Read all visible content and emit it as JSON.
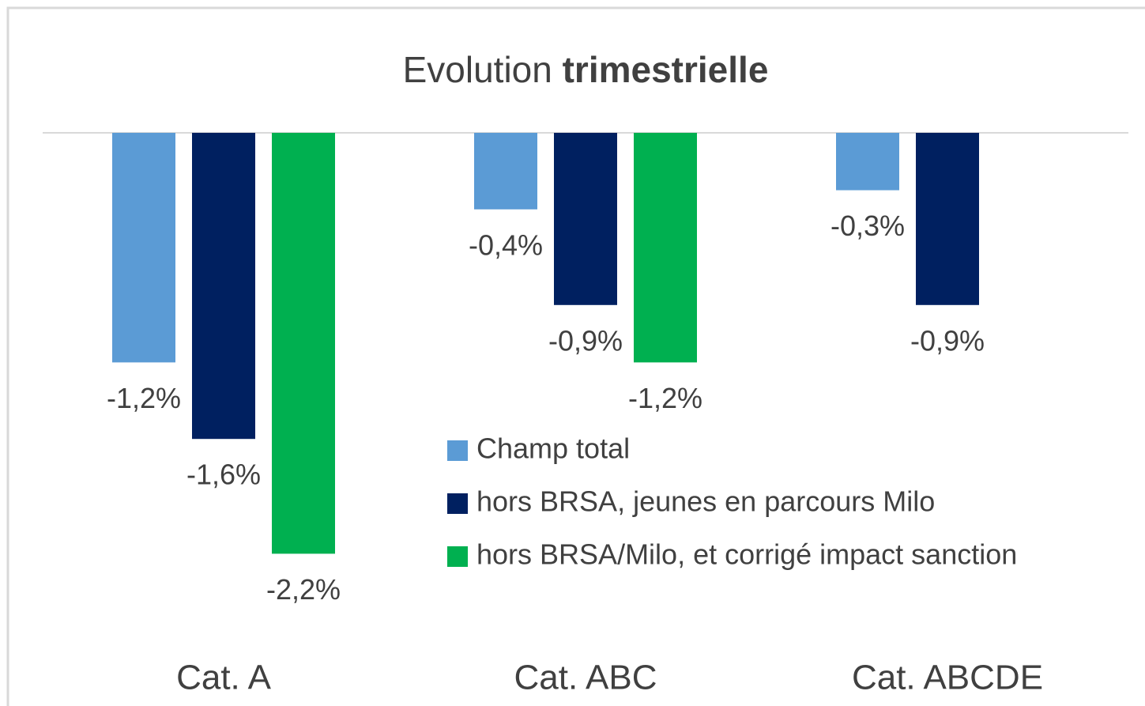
{
  "chart_data": {
    "type": "bar",
    "title": [
      "Evolution",
      "trimestrielle"
    ],
    "categories": [
      "Cat. A",
      "Cat. ABC",
      "Cat. ABCDE"
    ],
    "series": [
      {
        "name": "Champ total",
        "color": "#5b9bd5",
        "values": [
          -1.2,
          -0.4,
          -0.3
        ],
        "value_labels": [
          "-1,2%",
          "-0,4%",
          "-0,3%"
        ]
      },
      {
        "name": "hors BRSA, jeunes en parcours Milo",
        "color": "#002060",
        "values": [
          -1.6,
          -0.9,
          -0.9
        ],
        "value_labels": [
          "-1,6%",
          "-0,9%",
          "-0,9%"
        ]
      },
      {
        "name": "hors BRSA/Milo, et corrigé impact sanction",
        "color": "#00b050",
        "values": [
          -2.2,
          -1.2,
          null
        ],
        "value_labels": [
          "-2,2%",
          "-1,2%",
          null
        ]
      }
    ],
    "ylim": [
      -2.5,
      0
    ],
    "legend": "center-right"
  }
}
